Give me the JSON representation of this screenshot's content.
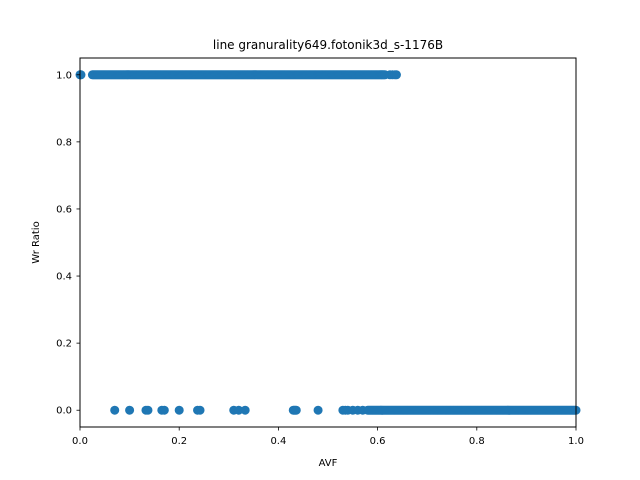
{
  "chart_data": {
    "type": "scatter",
    "title": "line granurality649.fotonik3d_s-1176B",
    "xlabel": "AVF",
    "ylabel": "Wr Ratio",
    "xlim": [
      0.0,
      1.0
    ],
    "ylim": [
      -0.05,
      1.05
    ],
    "xticks": [
      0.0,
      0.2,
      0.4,
      0.6,
      0.8,
      1.0
    ],
    "xtick_labels": [
      "0.0",
      "0.2",
      "0.4",
      "0.6",
      "0.8",
      "1.0"
    ],
    "yticks": [
      0.0,
      0.2,
      0.4,
      0.6,
      0.8,
      1.0
    ],
    "ytick_labels": [
      "0.0",
      "0.2",
      "0.4",
      "0.6",
      "0.8",
      "1.0"
    ],
    "grid": false,
    "legend": "none",
    "color": "#1f77b4",
    "clusters": [
      {
        "y": 1.0,
        "points": [
          0.0,
          0.001,
          0.002
        ]
      },
      {
        "y": 1.0,
        "range": [
          0.025,
          0.615
        ]
      },
      {
        "y": 1.0,
        "points": [
          0.625,
          0.63,
          0.635,
          0.638
        ]
      },
      {
        "y": 0.0,
        "points": [
          0.07,
          0.1,
          0.133,
          0.137,
          0.165,
          0.17,
          0.2,
          0.237,
          0.242,
          0.31,
          0.32,
          0.333,
          0.43,
          0.432,
          0.434,
          0.436,
          0.48,
          0.53,
          0.535,
          0.54,
          0.55,
          0.56,
          0.57
        ]
      },
      {
        "y": 0.0,
        "range": [
          0.58,
          1.0
        ]
      }
    ]
  }
}
